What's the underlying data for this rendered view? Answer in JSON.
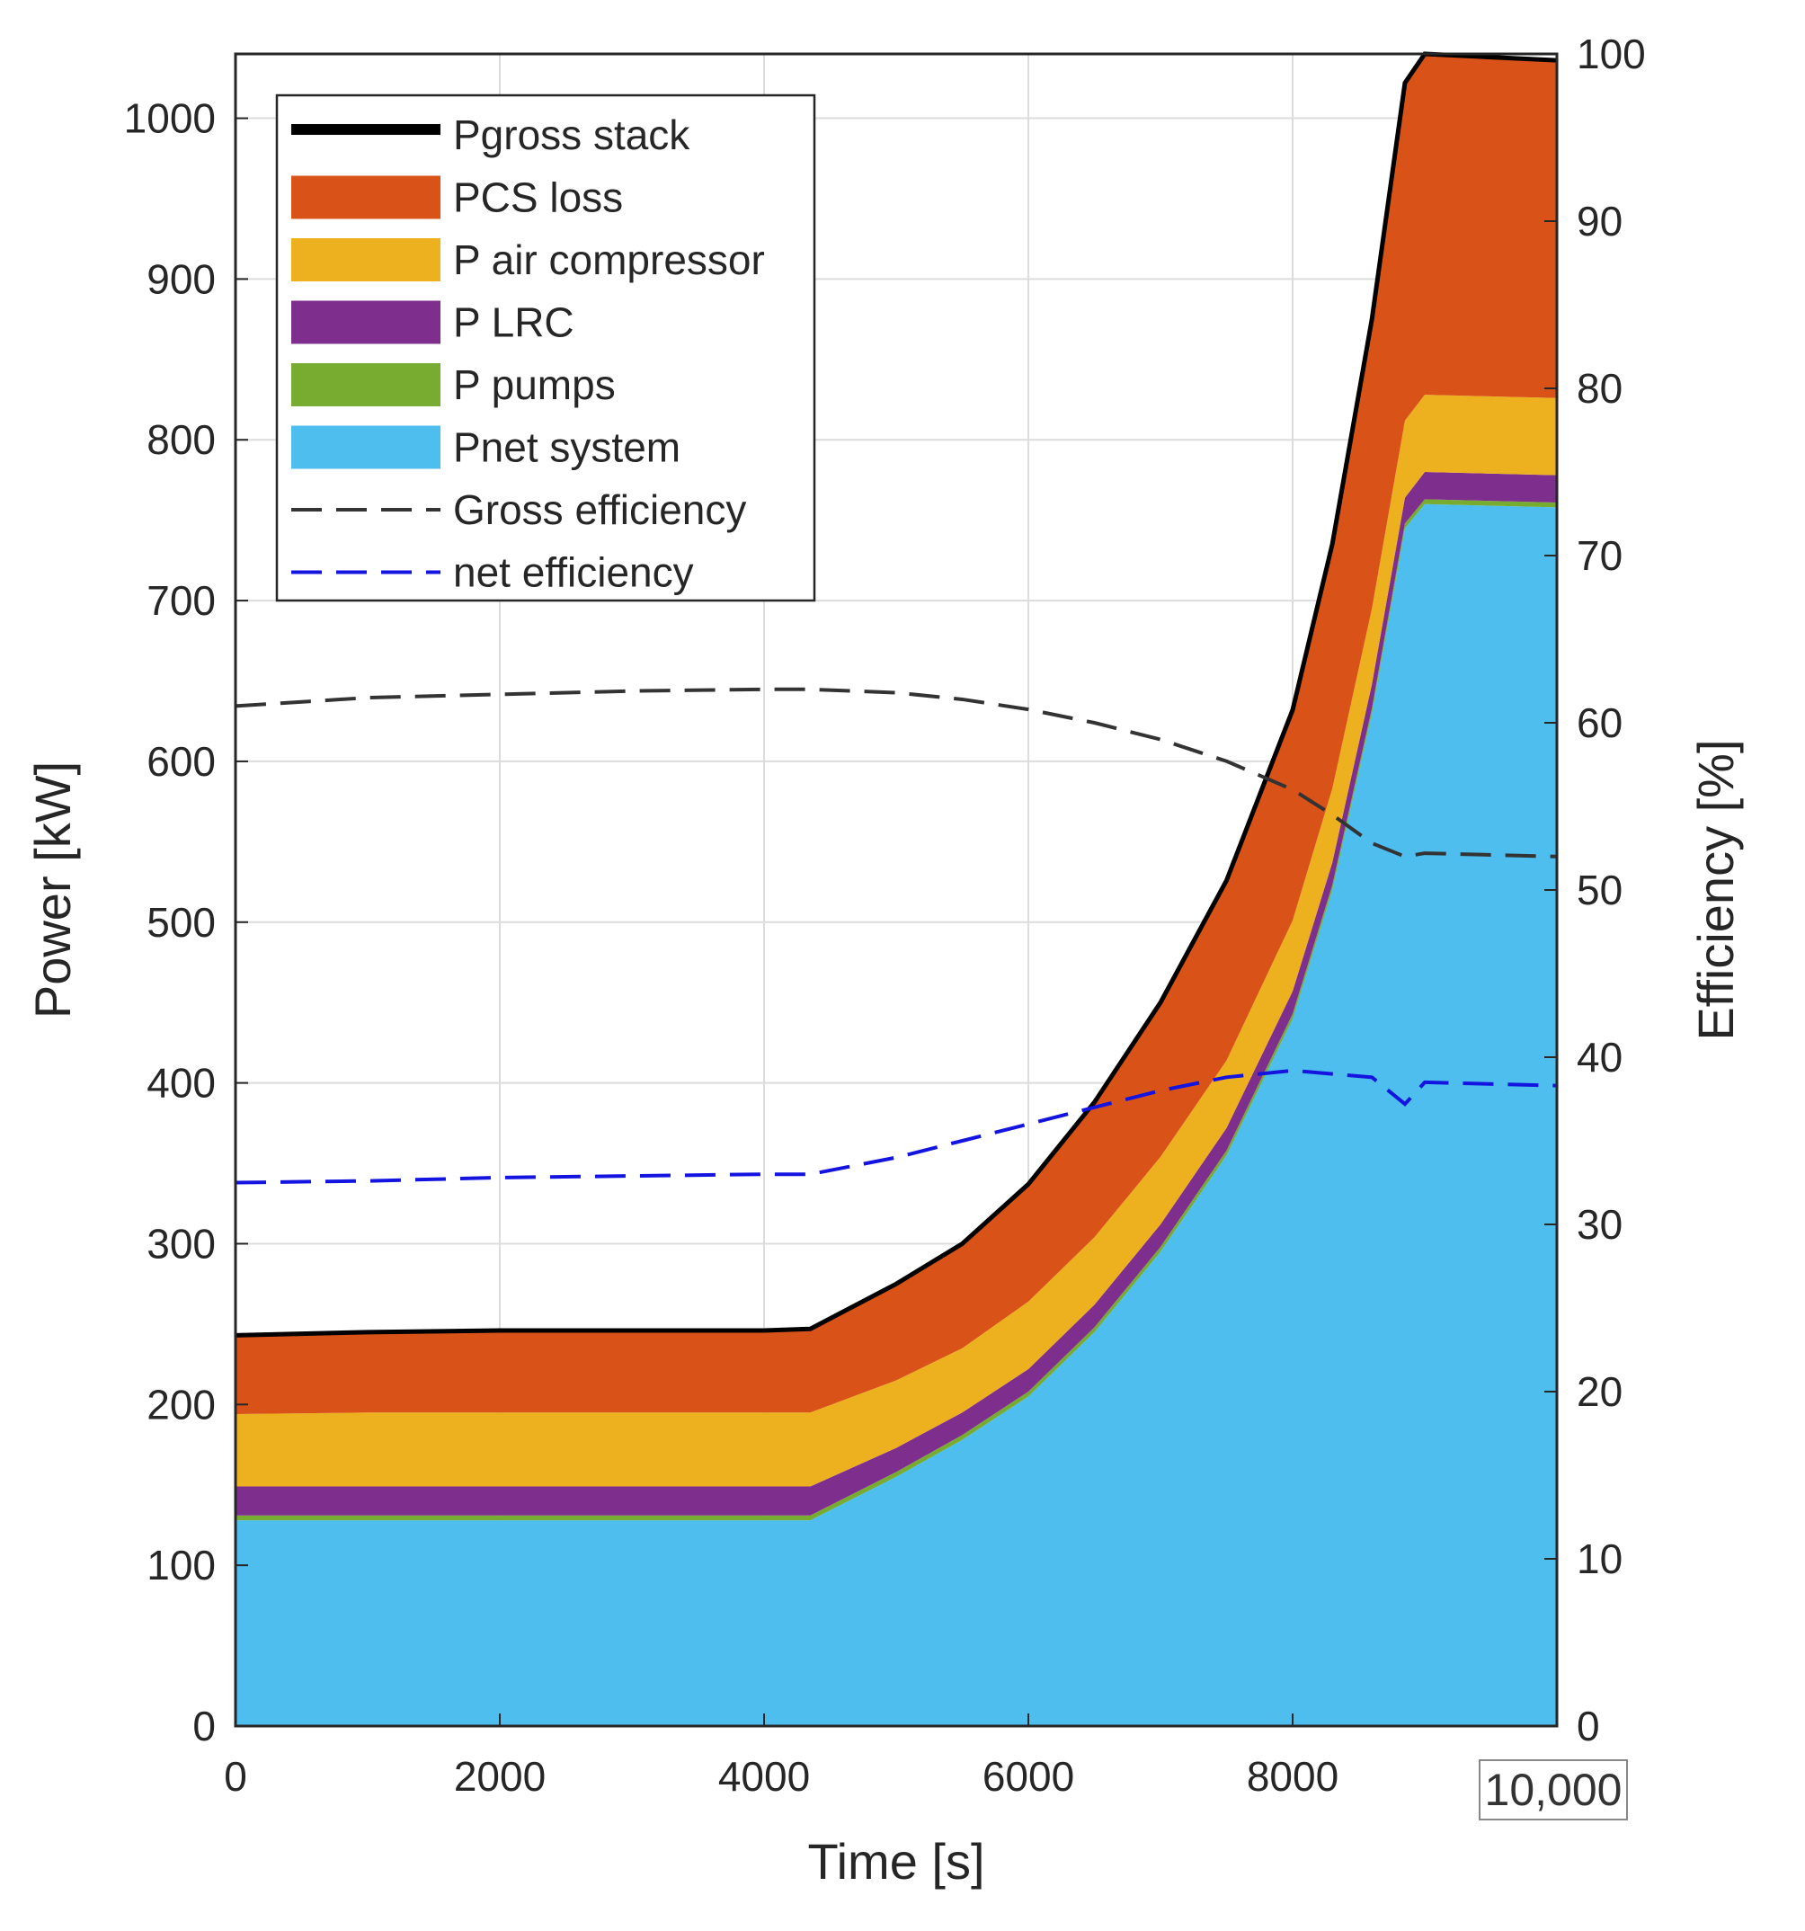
{
  "chart_data": {
    "type": "area",
    "xlabel": "Time [s]",
    "ylabel": "Power [kW]",
    "y2label": "Efficiency [%]",
    "xlim": [
      0,
      10000
    ],
    "ylim": [
      0,
      1040
    ],
    "y2lim": [
      0,
      100
    ],
    "grid": true,
    "legend_position": "top-left",
    "x_ticks": [
      "0",
      "2000",
      "4000",
      "6000",
      "8000"
    ],
    "x_tick_values": [
      0,
      2000,
      4000,
      6000,
      8000
    ],
    "x_tick_last_boxed": "10,000",
    "y_ticks": [
      "0",
      "100",
      "200",
      "300",
      "400",
      "500",
      "600",
      "700",
      "800",
      "900",
      "1000"
    ],
    "y_tick_values": [
      0,
      100,
      200,
      300,
      400,
      500,
      600,
      700,
      800,
      900,
      1000
    ],
    "y2_ticks": [
      "0",
      "10",
      "20",
      "30",
      "40",
      "50",
      "60",
      "70",
      "80",
      "90",
      "100"
    ],
    "y2_tick_values": [
      0,
      10,
      20,
      30,
      40,
      50,
      60,
      70,
      80,
      90,
      100
    ],
    "x": [
      0,
      1000,
      2000,
      3000,
      4000,
      4350,
      5000,
      5500,
      6000,
      6500,
      7000,
      7500,
      8000,
      8300,
      8600,
      8850,
      9000,
      10000
    ],
    "series": [
      {
        "name": "Pnet system",
        "color": "#4DBEEE",
        "axis": "left",
        "kind": "stacked-area",
        "values": [
          128,
          128,
          128,
          128,
          128,
          128,
          155,
          178,
          205,
          245,
          295,
          355,
          440,
          520,
          630,
          745,
          760,
          758
        ]
      },
      {
        "name": "P pumps",
        "color": "#77AC30",
        "axis": "left",
        "kind": "stacked-area",
        "values": [
          3,
          3,
          3,
          3,
          3,
          3,
          3,
          3,
          3,
          3,
          3,
          3,
          3,
          3,
          3,
          3,
          3,
          3
        ]
      },
      {
        "name": "P LRC",
        "color": "#7E2F8E",
        "axis": "left",
        "kind": "stacked-area",
        "values": [
          18,
          18,
          18,
          18,
          18,
          18,
          15,
          14,
          14,
          14,
          14,
          14,
          14,
          14,
          15,
          16,
          17,
          17
        ]
      },
      {
        "name": "P air compressor",
        "color": "#EDB120",
        "axis": "left",
        "kind": "stacked-area",
        "values": [
          45,
          46,
          46,
          46,
          46,
          46,
          42,
          40,
          42,
          42,
          42,
          42,
          44,
          46,
          47,
          48,
          48,
          48
        ]
      },
      {
        "name": "PCS loss",
        "color": "#D95319",
        "axis": "left",
        "kind": "stacked-area",
        "values": [
          49,
          50,
          51,
          51,
          51,
          52,
          60,
          65,
          73,
          84,
          96,
          112,
          131,
          152,
          180,
          210,
          212,
          210
        ]
      },
      {
        "name": "Pgross stack",
        "color": "#000000",
        "axis": "left",
        "kind": "line",
        "values": [
          243,
          245,
          246,
          246,
          246,
          247,
          275,
          300,
          337,
          388,
          450,
          526,
          632,
          735,
          875,
          1022,
          1040,
          1036
        ]
      },
      {
        "name": "Gross efficiency",
        "color": "#333333",
        "axis": "right",
        "kind": "dashed-line",
        "values": [
          61,
          61.5,
          61.7,
          61.9,
          62,
          62,
          61.8,
          61.4,
          60.8,
          60,
          59,
          57.7,
          56,
          54.5,
          52.8,
          52,
          52.2,
          52
        ]
      },
      {
        "name": "net efficiency",
        "color": "#1414E0",
        "axis": "right",
        "kind": "dashed-line",
        "values": [
          32.5,
          32.6,
          32.8,
          32.9,
          33,
          33,
          34,
          35,
          36,
          37,
          38,
          38.8,
          39.2,
          39,
          38.8,
          37.2,
          38.5,
          38.3
        ]
      }
    ]
  }
}
